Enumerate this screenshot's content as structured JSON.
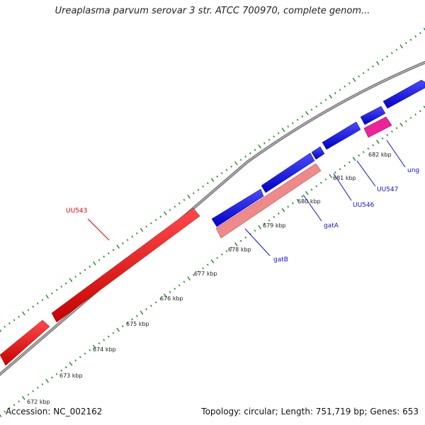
{
  "title": "Ureaplasma parvum serovar 3 str. ATCC 700970, complete genom...",
  "accession_line": "Accession: NC_002162",
  "topology_line": "Topology: circular; Length: 751,719 bp; Genes: 653",
  "colors": {
    "backbone": "#7a7a7a",
    "tick_dots": "#1a8a1a",
    "forward_gene": "#e00000",
    "forward_gene_pale": "#ee8888",
    "reverse_gene": "#0a0ae6",
    "rna_gene": "#ee2299",
    "label_red": "#dd0000",
    "label_blue": "#1010cc"
  },
  "ticks": [
    "672 kbp",
    "673 kbp",
    "674 kbp",
    "675 kbp",
    "676 kbp",
    "677 kbp",
    "678 kbp",
    "679 kbp",
    "680 kbp",
    "681 kbp",
    "682 kbp"
  ],
  "gene_labels": [
    {
      "name": "UU543",
      "color": "label_red"
    },
    {
      "name": "gatB",
      "color": "label_blue"
    },
    {
      "name": "gatA",
      "color": "label_blue"
    },
    {
      "name": "UU546",
      "color": "label_blue"
    },
    {
      "name": "UU547",
      "color": "label_blue"
    },
    {
      "name": "ung",
      "color": "label_blue"
    }
  ]
}
